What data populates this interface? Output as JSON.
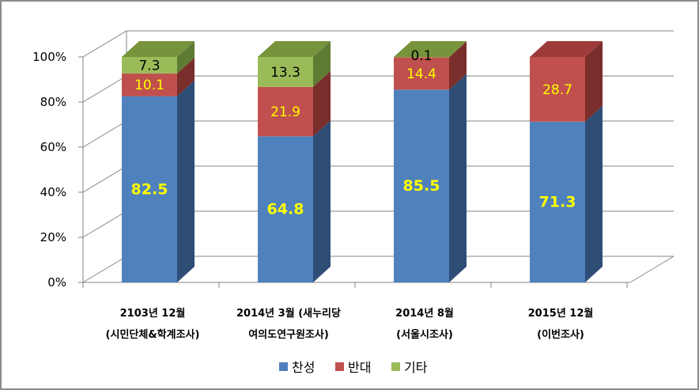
{
  "chart_data": {
    "type": "bar",
    "stacked": true,
    "percent": true,
    "three_d": true,
    "grid": true,
    "legend_position": "bottom",
    "ylim": [
      0,
      100
    ],
    "y_ticks": [
      "0%",
      "20%",
      "40%",
      "60%",
      "80%",
      "100%"
    ],
    "categories": [
      [
        "2103년 12월",
        "(시민단체&학계조사)"
      ],
      [
        "2014년 3월 (새누리당",
        "여의도연구원조사)"
      ],
      [
        "2014년 8월",
        "(서울시조사)"
      ],
      [
        "2015년 12월",
        "(이번조사)"
      ]
    ],
    "series": [
      {
        "name": "찬성",
        "values": [
          82.5,
          64.8,
          85.5,
          71.3
        ],
        "color": "#4f81bd",
        "side_color": "#2f4e76",
        "label_color": "#ffff00",
        "label_bold": true
      },
      {
        "name": "반대",
        "values": [
          10.1,
          21.9,
          14.4,
          28.7
        ],
        "color": "#c0504d",
        "side_color": "#7a2e2c",
        "label_color": "#ffff00",
        "label_bold": false
      },
      {
        "name": "기타",
        "values": [
          7.3,
          13.3,
          0.1,
          0.0
        ],
        "color": "#9bbb59",
        "side_color": "#5f7a32",
        "label_color": "#000000",
        "label_bold": false
      }
    ],
    "labels": [
      [
        "82.5",
        "10.1",
        "7.3"
      ],
      [
        "64.8",
        "21.9",
        "13.3"
      ],
      [
        "85.5",
        "14.4",
        "0.1"
      ],
      [
        "71.3",
        "28.7",
        ""
      ]
    ]
  }
}
